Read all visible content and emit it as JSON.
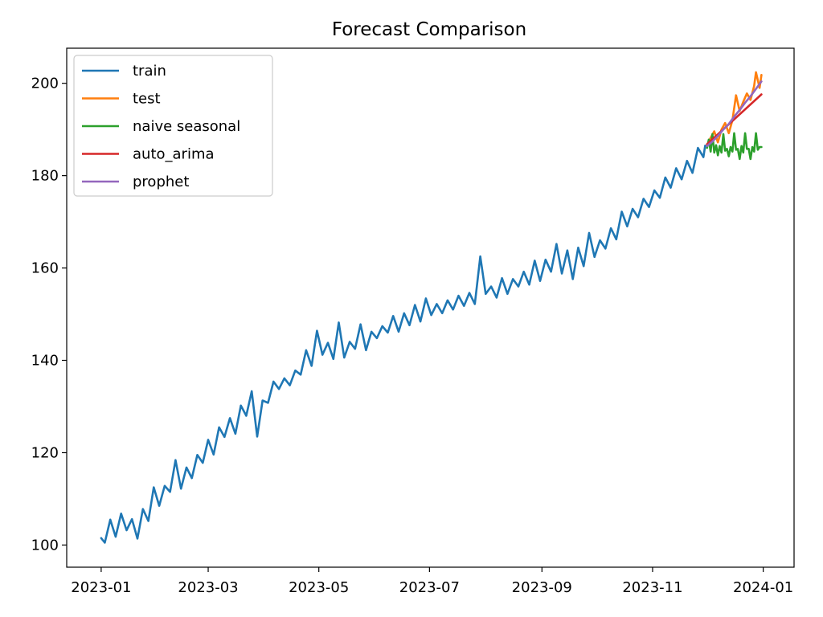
{
  "chart_data": {
    "type": "line",
    "title": "Forecast Comparison",
    "xlabel": "",
    "ylabel": "",
    "x_range": [
      "2022-12-13",
      "2024-01-18"
    ],
    "ylim": [
      95.2,
      207.6
    ],
    "x_ticks": [
      {
        "date": "2023-01-01",
        "label": "2023-01"
      },
      {
        "date": "2023-03-01",
        "label": "2023-03"
      },
      {
        "date": "2023-05-01",
        "label": "2023-05"
      },
      {
        "date": "2023-07-01",
        "label": "2023-07"
      },
      {
        "date": "2023-09-01",
        "label": "2023-09"
      },
      {
        "date": "2023-11-01",
        "label": "2023-11"
      },
      {
        "date": "2024-01-01",
        "label": "2024-01"
      }
    ],
    "y_ticks": [
      100,
      120,
      140,
      160,
      180,
      200
    ],
    "grid": false,
    "legend": {
      "position": "top-left"
    },
    "series": [
      {
        "name": "train",
        "color": "#1f77b4",
        "points": [
          [
            "2023-01-01",
            101.5
          ],
          [
            "2023-01-03",
            100.5
          ],
          [
            "2023-01-06",
            105.5
          ],
          [
            "2023-01-09",
            101.8
          ],
          [
            "2023-01-12",
            106.8
          ],
          [
            "2023-01-15",
            103.2
          ],
          [
            "2023-01-18",
            105.6
          ],
          [
            "2023-01-21",
            101.4
          ],
          [
            "2023-01-24",
            107.8
          ],
          [
            "2023-01-27",
            105.2
          ],
          [
            "2023-01-30",
            112.5
          ],
          [
            "2023-02-02",
            108.5
          ],
          [
            "2023-02-05",
            112.8
          ],
          [
            "2023-02-08",
            111.5
          ],
          [
            "2023-02-11",
            118.4
          ],
          [
            "2023-02-14",
            112.2
          ],
          [
            "2023-02-17",
            116.8
          ],
          [
            "2023-02-20",
            114.5
          ],
          [
            "2023-02-23",
            119.5
          ],
          [
            "2023-02-26",
            117.8
          ],
          [
            "2023-03-01",
            122.8
          ],
          [
            "2023-03-04",
            119.6
          ],
          [
            "2023-03-07",
            125.5
          ],
          [
            "2023-03-10",
            123.4
          ],
          [
            "2023-03-13",
            127.5
          ],
          [
            "2023-03-16",
            124.1
          ],
          [
            "2023-03-19",
            130.2
          ],
          [
            "2023-03-22",
            128.0
          ],
          [
            "2023-03-25",
            133.3
          ],
          [
            "2023-03-28",
            123.5
          ],
          [
            "2023-03-31",
            131.3
          ],
          [
            "2023-04-03",
            130.8
          ],
          [
            "2023-04-06",
            135.4
          ],
          [
            "2023-04-09",
            133.8
          ],
          [
            "2023-04-12",
            136.1
          ],
          [
            "2023-04-15",
            134.6
          ],
          [
            "2023-04-18",
            137.8
          ],
          [
            "2023-04-21",
            136.9
          ],
          [
            "2023-04-24",
            142.2
          ],
          [
            "2023-04-27",
            138.8
          ],
          [
            "2023-04-30",
            146.4
          ],
          [
            "2023-05-03",
            141.2
          ],
          [
            "2023-05-06",
            143.8
          ],
          [
            "2023-05-09",
            140.3
          ],
          [
            "2023-05-12",
            148.2
          ],
          [
            "2023-05-15",
            140.6
          ],
          [
            "2023-05-18",
            144.0
          ],
          [
            "2023-05-21",
            142.5
          ],
          [
            "2023-05-24",
            147.8
          ],
          [
            "2023-05-27",
            142.2
          ],
          [
            "2023-05-30",
            146.2
          ],
          [
            "2023-06-02",
            144.8
          ],
          [
            "2023-06-05",
            147.4
          ],
          [
            "2023-06-08",
            146.0
          ],
          [
            "2023-06-11",
            149.6
          ],
          [
            "2023-06-14",
            146.2
          ],
          [
            "2023-06-17",
            150.2
          ],
          [
            "2023-06-20",
            147.6
          ],
          [
            "2023-06-23",
            152.0
          ],
          [
            "2023-06-26",
            148.4
          ],
          [
            "2023-06-29",
            153.4
          ],
          [
            "2023-07-02",
            149.8
          ],
          [
            "2023-07-05",
            152.2
          ],
          [
            "2023-07-08",
            150.2
          ],
          [
            "2023-07-11",
            153.0
          ],
          [
            "2023-07-14",
            151.0
          ],
          [
            "2023-07-17",
            154.0
          ],
          [
            "2023-07-20",
            151.8
          ],
          [
            "2023-07-23",
            154.6
          ],
          [
            "2023-07-26",
            152.2
          ],
          [
            "2023-07-29",
            162.5
          ],
          [
            "2023-08-01",
            154.4
          ],
          [
            "2023-08-04",
            156.0
          ],
          [
            "2023-08-07",
            153.6
          ],
          [
            "2023-08-10",
            157.8
          ],
          [
            "2023-08-13",
            154.4
          ],
          [
            "2023-08-16",
            157.6
          ],
          [
            "2023-08-19",
            156.0
          ],
          [
            "2023-08-22",
            159.2
          ],
          [
            "2023-08-25",
            156.4
          ],
          [
            "2023-08-28",
            161.6
          ],
          [
            "2023-08-31",
            157.2
          ],
          [
            "2023-09-03",
            161.8
          ],
          [
            "2023-09-06",
            159.2
          ],
          [
            "2023-09-09",
            165.2
          ],
          [
            "2023-09-12",
            158.8
          ],
          [
            "2023-09-15",
            163.8
          ],
          [
            "2023-09-18",
            157.6
          ],
          [
            "2023-09-21",
            164.4
          ],
          [
            "2023-09-24",
            160.4
          ],
          [
            "2023-09-27",
            167.6
          ],
          [
            "2023-09-30",
            162.4
          ],
          [
            "2023-10-03",
            166.0
          ],
          [
            "2023-10-06",
            164.2
          ],
          [
            "2023-10-09",
            168.6
          ],
          [
            "2023-10-12",
            166.2
          ],
          [
            "2023-10-15",
            172.2
          ],
          [
            "2023-10-18",
            169.0
          ],
          [
            "2023-10-21",
            172.8
          ],
          [
            "2023-10-24",
            171.0
          ],
          [
            "2023-10-27",
            175.0
          ],
          [
            "2023-10-30",
            173.2
          ],
          [
            "2023-11-02",
            176.8
          ],
          [
            "2023-11-05",
            175.2
          ],
          [
            "2023-11-08",
            179.6
          ],
          [
            "2023-11-11",
            177.4
          ],
          [
            "2023-11-14",
            181.6
          ],
          [
            "2023-11-17",
            179.2
          ],
          [
            "2023-11-20",
            183.2
          ],
          [
            "2023-11-23",
            180.6
          ],
          [
            "2023-11-26",
            186.0
          ],
          [
            "2023-11-29",
            184.0
          ],
          [
            "2023-11-30",
            186.5
          ]
        ]
      },
      {
        "name": "test",
        "color": "#ff7f0e",
        "points": [
          [
            "2023-12-01",
            186.6
          ],
          [
            "2023-12-03",
            188.2
          ],
          [
            "2023-12-05",
            189.6
          ],
          [
            "2023-12-07",
            187.2
          ],
          [
            "2023-12-09",
            190.0
          ],
          [
            "2023-12-11",
            191.4
          ],
          [
            "2023-12-13",
            189.2
          ],
          [
            "2023-12-15",
            192.0
          ],
          [
            "2023-12-17",
            197.4
          ],
          [
            "2023-12-19",
            194.0
          ],
          [
            "2023-12-21",
            196.0
          ],
          [
            "2023-12-23",
            197.8
          ],
          [
            "2023-12-25",
            196.4
          ],
          [
            "2023-12-27",
            199.4
          ],
          [
            "2023-12-28",
            202.4
          ],
          [
            "2023-12-30",
            199.0
          ],
          [
            "2023-12-31",
            201.8
          ]
        ]
      },
      {
        "name": "naive seasonal",
        "color": "#2ca02c",
        "points": [
          [
            "2023-12-01",
            186.0
          ],
          [
            "2023-12-02",
            187.8
          ],
          [
            "2023-12-03",
            185.2
          ],
          [
            "2023-12-04",
            189.0
          ],
          [
            "2023-12-05",
            185.0
          ],
          [
            "2023-12-06",
            186.6
          ],
          [
            "2023-12-07",
            184.4
          ],
          [
            "2023-12-08",
            186.4
          ],
          [
            "2023-12-09",
            185.0
          ],
          [
            "2023-12-10",
            189.0
          ],
          [
            "2023-12-11",
            185.4
          ],
          [
            "2023-12-12",
            185.8
          ],
          [
            "2023-12-13",
            184.2
          ],
          [
            "2023-12-14",
            186.2
          ],
          [
            "2023-12-15",
            185.2
          ],
          [
            "2023-12-16",
            189.2
          ],
          [
            "2023-12-17",
            185.6
          ],
          [
            "2023-12-18",
            185.8
          ],
          [
            "2023-12-19",
            183.6
          ],
          [
            "2023-12-20",
            186.4
          ],
          [
            "2023-12-21",
            185.0
          ],
          [
            "2023-12-22",
            189.2
          ],
          [
            "2023-12-23",
            185.8
          ],
          [
            "2023-12-24",
            185.8
          ],
          [
            "2023-12-25",
            183.6
          ],
          [
            "2023-12-26",
            186.2
          ],
          [
            "2023-12-27",
            185.2
          ],
          [
            "2023-12-28",
            189.2
          ],
          [
            "2023-12-29",
            185.6
          ],
          [
            "2023-12-30",
            186.2
          ],
          [
            "2023-12-31",
            186.2
          ]
        ]
      },
      {
        "name": "auto_arima",
        "color": "#d62728",
        "points": [
          [
            "2023-12-01",
            186.8
          ],
          [
            "2023-12-31",
            197.6
          ]
        ]
      },
      {
        "name": "prophet",
        "color": "#9467bd",
        "points": [
          [
            "2023-12-01",
            186.4
          ],
          [
            "2023-12-04",
            187.4
          ],
          [
            "2023-12-07",
            188.6
          ],
          [
            "2023-12-10",
            190.0
          ],
          [
            "2023-12-13",
            191.2
          ],
          [
            "2023-12-16",
            192.8
          ],
          [
            "2023-12-19",
            194.2
          ],
          [
            "2023-12-22",
            195.8
          ],
          [
            "2023-12-25",
            197.2
          ],
          [
            "2023-12-28",
            198.8
          ],
          [
            "2023-12-31",
            200.4
          ]
        ]
      }
    ]
  }
}
